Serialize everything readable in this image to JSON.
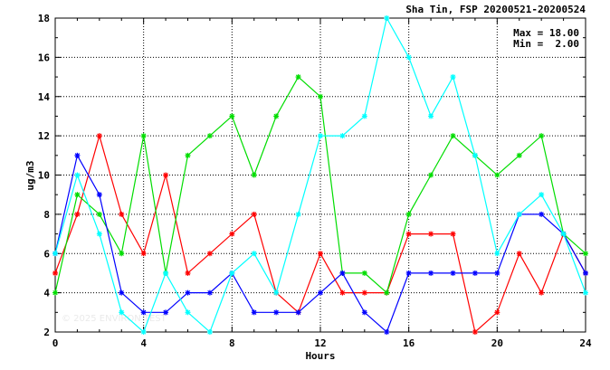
{
  "chart_data": {
    "type": "line",
    "title": "Sha Tin, FSP 20200521-20200524",
    "xlabel": "Hours",
    "ylabel": "ug/m3",
    "xlim": [
      0,
      24
    ],
    "ylim": [
      2,
      18
    ],
    "xticks": [
      0,
      4,
      8,
      12,
      16,
      20,
      24
    ],
    "yticks": [
      2,
      4,
      6,
      8,
      10,
      12,
      14,
      16,
      18
    ],
    "grid": true,
    "stats": {
      "max_label": "Max = 18.00",
      "min_label": "Min =  2.00"
    },
    "watermark": "© 2025  ENVIRON TEST",
    "x": [
      0,
      1,
      2,
      3,
      4,
      5,
      6,
      7,
      8,
      9,
      10,
      11,
      12,
      13,
      14,
      15,
      16,
      17,
      18,
      19,
      20,
      21,
      22,
      23,
      24
    ],
    "series": [
      {
        "color": "#ff0000",
        "values": [
          5,
          8,
          12,
          8,
          6,
          10,
          5,
          6,
          7,
          8,
          4,
          3,
          6,
          4,
          4,
          4,
          7,
          7,
          7,
          2,
          3,
          6,
          4,
          7,
          5
        ]
      },
      {
        "color": "#00dd00",
        "values": [
          4,
          9,
          8,
          6,
          12,
          5,
          11,
          12,
          13,
          10,
          13,
          15,
          14,
          5,
          5,
          4,
          8,
          10,
          12,
          11,
          10,
          11,
          12,
          7,
          6
        ]
      },
      {
        "color": "#0000ff",
        "values": [
          6,
          11,
          9,
          4,
          3,
          3,
          4,
          4,
          5,
          3,
          3,
          3,
          4,
          5,
          3,
          2,
          5,
          5,
          5,
          5,
          5,
          8,
          8,
          7,
          5
        ]
      },
      {
        "color": "#00ffff",
        "values": [
          6,
          10,
          7,
          3,
          2,
          5,
          3,
          2,
          5,
          6,
          4,
          8,
          12,
          12,
          13,
          18,
          16,
          13,
          15,
          11,
          6,
          8,
          9,
          7,
          4
        ]
      }
    ]
  }
}
